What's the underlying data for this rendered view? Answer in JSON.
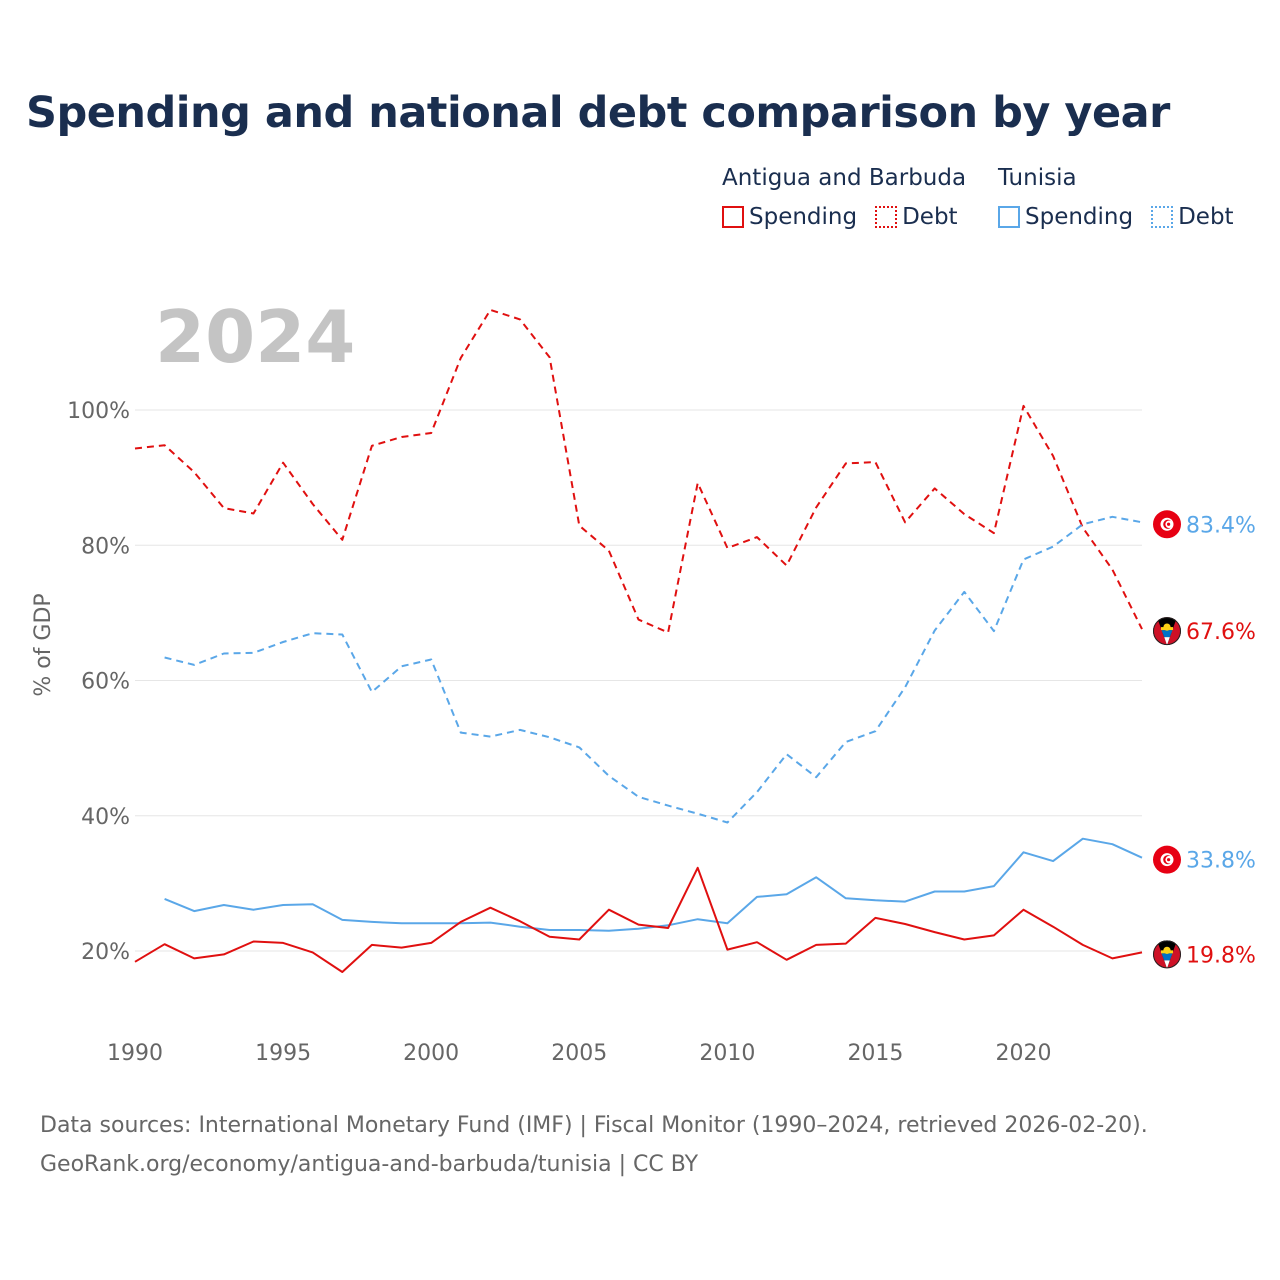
{
  "title": "Spending and national debt comparison by year",
  "legend": {
    "groups": [
      {
        "country": "Antigua and Barbuda",
        "items": [
          "Spending",
          "Debt"
        ]
      },
      {
        "country": "Tunisia",
        "items": [
          "Spending",
          "Debt"
        ]
      }
    ]
  },
  "source": {
    "line1": "Data sources: International Monetary Fund (IMF) | Fiscal Monitor (1990–2024, retrieved 2026-02-20).",
    "line2": "GeoRank.org/economy/antigua-and-barbuda/tunisia | CC BY"
  },
  "colors": {
    "antigua": "#e01010",
    "tunisia": "#5aa7e8",
    "grid": "#e6e6e6",
    "axis_text": "#666666",
    "year_label": "#c4c4c4"
  },
  "chart_data": {
    "type": "line",
    "year_label": "2024",
    "ylabel": "% of GDP",
    "xlim": [
      1990,
      2024
    ],
    "ylim": [
      10,
      115
    ],
    "x_ticks": [
      1990,
      1995,
      2000,
      2005,
      2010,
      2015,
      2020
    ],
    "y_ticks": [
      20,
      40,
      60,
      80,
      100
    ],
    "y_tick_labels": [
      "20%",
      "40%",
      "60%",
      "80%",
      "100%"
    ],
    "series": [
      {
        "name": "Antigua and Barbuda Debt",
        "country": "Antigua and Barbuda",
        "metric": "Debt",
        "color": "#e01010",
        "dash": "dashed",
        "start_year": 1990,
        "end_label": "67.6%",
        "values": [
          94.3,
          94.8,
          90.8,
          85.5,
          84.7,
          92.2,
          86.1,
          80.8,
          94.7,
          96.0,
          96.6,
          107.7,
          114.8,
          113.4,
          107.8,
          82.9,
          79.2,
          69.0,
          67.1,
          89.2,
          79.6,
          81.2,
          77.0,
          85.6,
          92.1,
          92.3,
          83.4,
          88.4,
          84.6,
          81.8,
          100.6,
          93.2,
          82.6,
          76.4,
          67.6
        ]
      },
      {
        "name": "Tunisia Debt",
        "country": "Tunisia",
        "metric": "Debt",
        "color": "#5aa7e8",
        "dash": "dashed",
        "start_year": 1991,
        "end_label": "83.4%",
        "values": [
          63.4,
          62.3,
          64.0,
          64.1,
          65.7,
          67.0,
          66.8,
          58.3,
          62.1,
          63.1,
          52.3,
          51.7,
          52.7,
          51.6,
          50.1,
          45.9,
          42.8,
          41.5,
          40.3,
          39.0,
          43.5,
          49.1,
          45.7,
          50.9,
          52.5,
          59.0,
          67.4,
          73.1,
          67.3,
          77.9,
          79.8,
          83.1,
          84.2,
          83.4
        ]
      },
      {
        "name": "Tunisia Spending",
        "country": "Tunisia",
        "metric": "Spending",
        "color": "#5aa7e8",
        "dash": "solid",
        "start_year": 1991,
        "end_label": "33.8%",
        "values": [
          27.7,
          25.9,
          26.8,
          26.1,
          26.8,
          26.9,
          24.6,
          24.3,
          24.1,
          24.1,
          24.1,
          24.2,
          23.6,
          23.1,
          23.1,
          23.0,
          23.3,
          23.8,
          24.7,
          24.1,
          28.0,
          28.4,
          30.9,
          27.8,
          27.5,
          27.3,
          28.8,
          28.8,
          29.6,
          34.6,
          33.3,
          36.6,
          35.8,
          33.8
        ]
      },
      {
        "name": "Antigua and Barbuda Spending",
        "country": "Antigua and Barbuda",
        "metric": "Spending",
        "color": "#e01010",
        "dash": "solid",
        "start_year": 1990,
        "end_label": "19.8%",
        "values": [
          18.4,
          21.0,
          18.9,
          19.5,
          21.4,
          21.2,
          19.8,
          16.9,
          20.9,
          20.5,
          21.2,
          24.3,
          26.4,
          24.4,
          22.1,
          21.7,
          26.1,
          23.9,
          23.4,
          32.3,
          20.2,
          21.3,
          18.7,
          20.9,
          21.1,
          24.9,
          24.0,
          22.8,
          21.7,
          22.3,
          26.1,
          23.6,
          20.9,
          18.9,
          19.8
        ]
      }
    ]
  }
}
